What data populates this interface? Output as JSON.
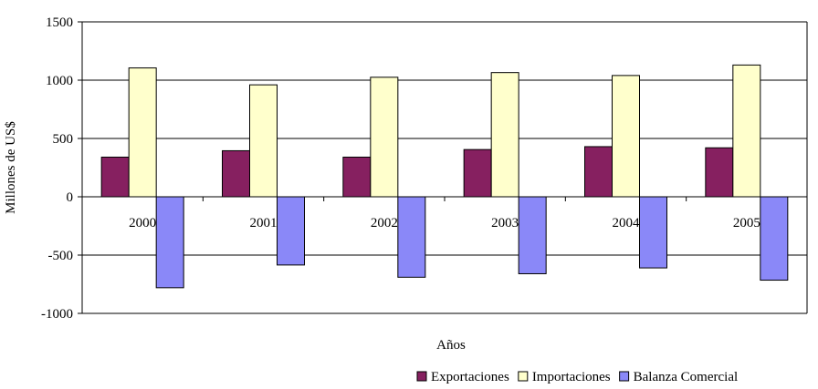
{
  "chart_data": {
    "type": "bar",
    "title": "",
    "xlabel": "Años",
    "ylabel": "Millones de US$",
    "ylim": [
      -1000,
      1500
    ],
    "yticks": [
      -1000,
      -500,
      0,
      500,
      1000,
      1500
    ],
    "ytick_labels": [
      "-1000",
      "-500",
      "0",
      "500",
      "1000",
      "1500"
    ],
    "grid": true,
    "legend_position": "bottom-right",
    "categories": [
      "2000",
      "2001",
      "2002",
      "2003",
      "2004",
      "2005"
    ],
    "series": [
      {
        "name": "Exportaciones",
        "color": "#862060",
        "values": [
          340,
          395,
          340,
          405,
          430,
          420
        ]
      },
      {
        "name": "Importaciones",
        "color": "#FFFFCC",
        "values": [
          1105,
          960,
          1025,
          1065,
          1040,
          1130
        ]
      },
      {
        "name": "Balanza Comercial",
        "color": "#8A88F8",
        "values": [
          -780,
          -585,
          -690,
          -660,
          -610,
          -715
        ]
      }
    ]
  }
}
